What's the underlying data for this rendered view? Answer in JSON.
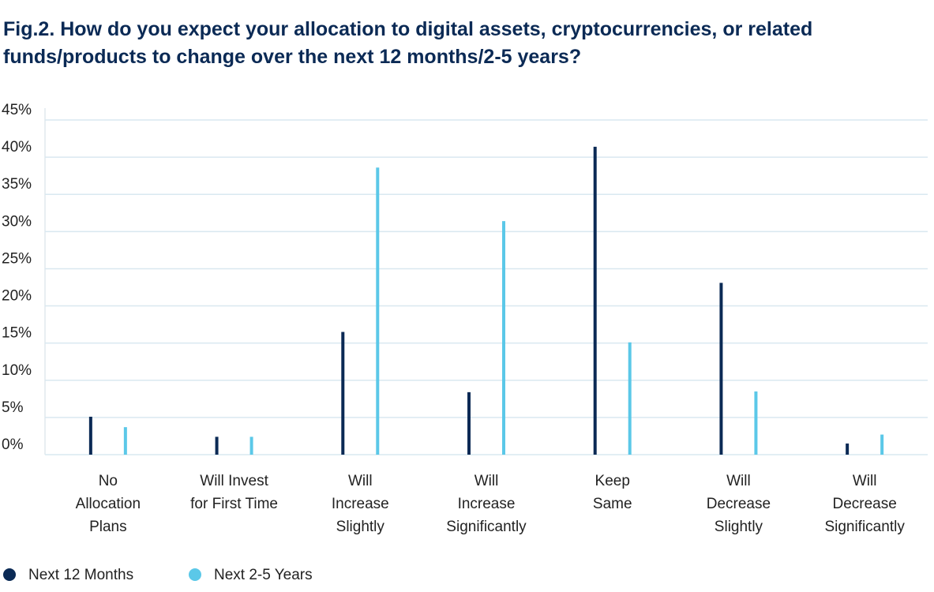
{
  "chart_data": {
    "type": "bar",
    "title": "Fig.2. How do you expect your allocation to digital assets, cryptocurrencies, or related funds/products to change over the next 12 months/2-5 years?",
    "categories": [
      [
        "No",
        "Allocation",
        "Plans"
      ],
      [
        "Will Invest",
        "for First Time"
      ],
      [
        "Will",
        "Increase",
        "Slightly"
      ],
      [
        "Will",
        "Increase",
        "Significantly"
      ],
      [
        "Keep",
        "Same"
      ],
      [
        "Will",
        "Decrease",
        "Slightly"
      ],
      [
        "Will",
        "Decrease",
        "Significantly"
      ]
    ],
    "series": [
      {
        "name": "Next 12 Months",
        "color": "#0b2a55",
        "values": [
          5.1,
          2.4,
          16.5,
          8.4,
          41.4,
          23.1,
          1.5
        ]
      },
      {
        "name": "Next 2-5 Years",
        "color": "#5bc8e8",
        "values": [
          3.7,
          2.4,
          38.6,
          31.4,
          15.1,
          8.5,
          2.7
        ]
      }
    ],
    "ylim": [
      0,
      45
    ],
    "yticks": [
      {
        "value": 0,
        "label": "0%"
      },
      {
        "value": 5,
        "label": "5%"
      },
      {
        "value": 10,
        "label": "10%"
      },
      {
        "value": 15,
        "label": "15%"
      },
      {
        "value": 20,
        "label": "20%"
      },
      {
        "value": 25,
        "label": "25%"
      },
      {
        "value": 30,
        "label": "30%"
      },
      {
        "value": 35,
        "label": "35%"
      },
      {
        "value": 40,
        "label": "40%"
      },
      {
        "value": 45,
        "label": "45%"
      }
    ],
    "grid": true,
    "legend": "bottom-left"
  }
}
